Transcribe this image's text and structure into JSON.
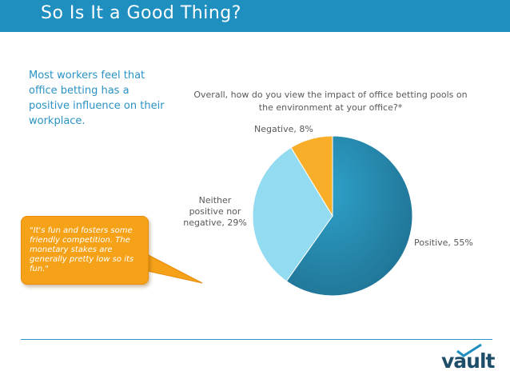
{
  "slide": {
    "title": "So Is It a Good Thing?",
    "intro": "Most workers feel that office betting has a positive influence on their workplace.",
    "quote": "\"It's fun and fosters some friendly competition. The monetary stakes are generally pretty low so its fun.\"",
    "logo_text": "vault"
  },
  "colors": {
    "title_bar": "#1f8fc0",
    "accent_text": "#2b93c4",
    "quote_fill": "#f5a218",
    "logo": "#1f4e6b"
  },
  "chart_data": {
    "type": "pie",
    "title": "Overall, how do you view the impact of office betting pools on the environment at your office?*",
    "slices": [
      {
        "label": "Positive, 55%",
        "value": 55,
        "color": "#2b8bb0"
      },
      {
        "label": "Neither\npositive nor\nnegative, 29%",
        "value": 29,
        "color": "#93dbf0"
      },
      {
        "label": "Negative, 8%",
        "value": 8,
        "color": "#f9ae2a"
      }
    ],
    "start_angle": "12 o'clock",
    "direction": "clockwise",
    "legend": "none"
  }
}
